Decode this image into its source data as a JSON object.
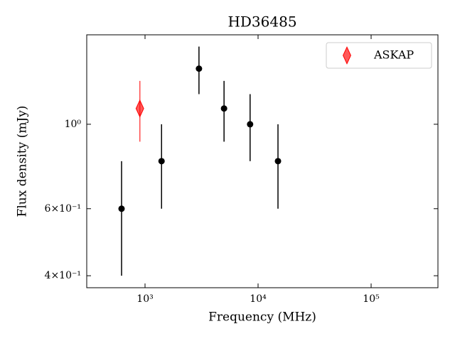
{
  "chart_data": {
    "type": "scatter",
    "title": "HD36485",
    "x_label": "Frequency (MHz)",
    "y_label": "Flux density (mJy)",
    "log_x": true,
    "log_y": true,
    "xlim": [
      305,
      390000
    ],
    "ylim": [
      0.372,
      1.718
    ],
    "xticks": [
      {
        "value": 1000,
        "label": "10³"
      },
      {
        "value": 10000,
        "label": "10⁴"
      },
      {
        "value": 100000,
        "label": "10⁵"
      }
    ],
    "yticks": [
      {
        "value": 0.4,
        "label": "4×10⁻¹"
      },
      {
        "value": 0.6,
        "label": "6×10⁻¹"
      },
      {
        "value": 1,
        "label": "10⁰"
      }
    ],
    "legend": "upper right",
    "series": [
      {
        "color": "#000000",
        "marker": "circle",
        "x": [
          620,
          1400,
          3000,
          5000,
          8500,
          15000
        ],
        "values": [
          0.6,
          0.8,
          1.4,
          1.1,
          1.0,
          0.8
        ],
        "errors": [
          0.2,
          0.2,
          0.2,
          0.2,
          0.2,
          0.2
        ]
      },
      {
        "name": "ASKAP",
        "color": "#ff0000",
        "marker": "diamond",
        "x": [
          900
        ],
        "values": [
          1.1
        ],
        "errors": [
          0.2
        ]
      }
    ]
  }
}
